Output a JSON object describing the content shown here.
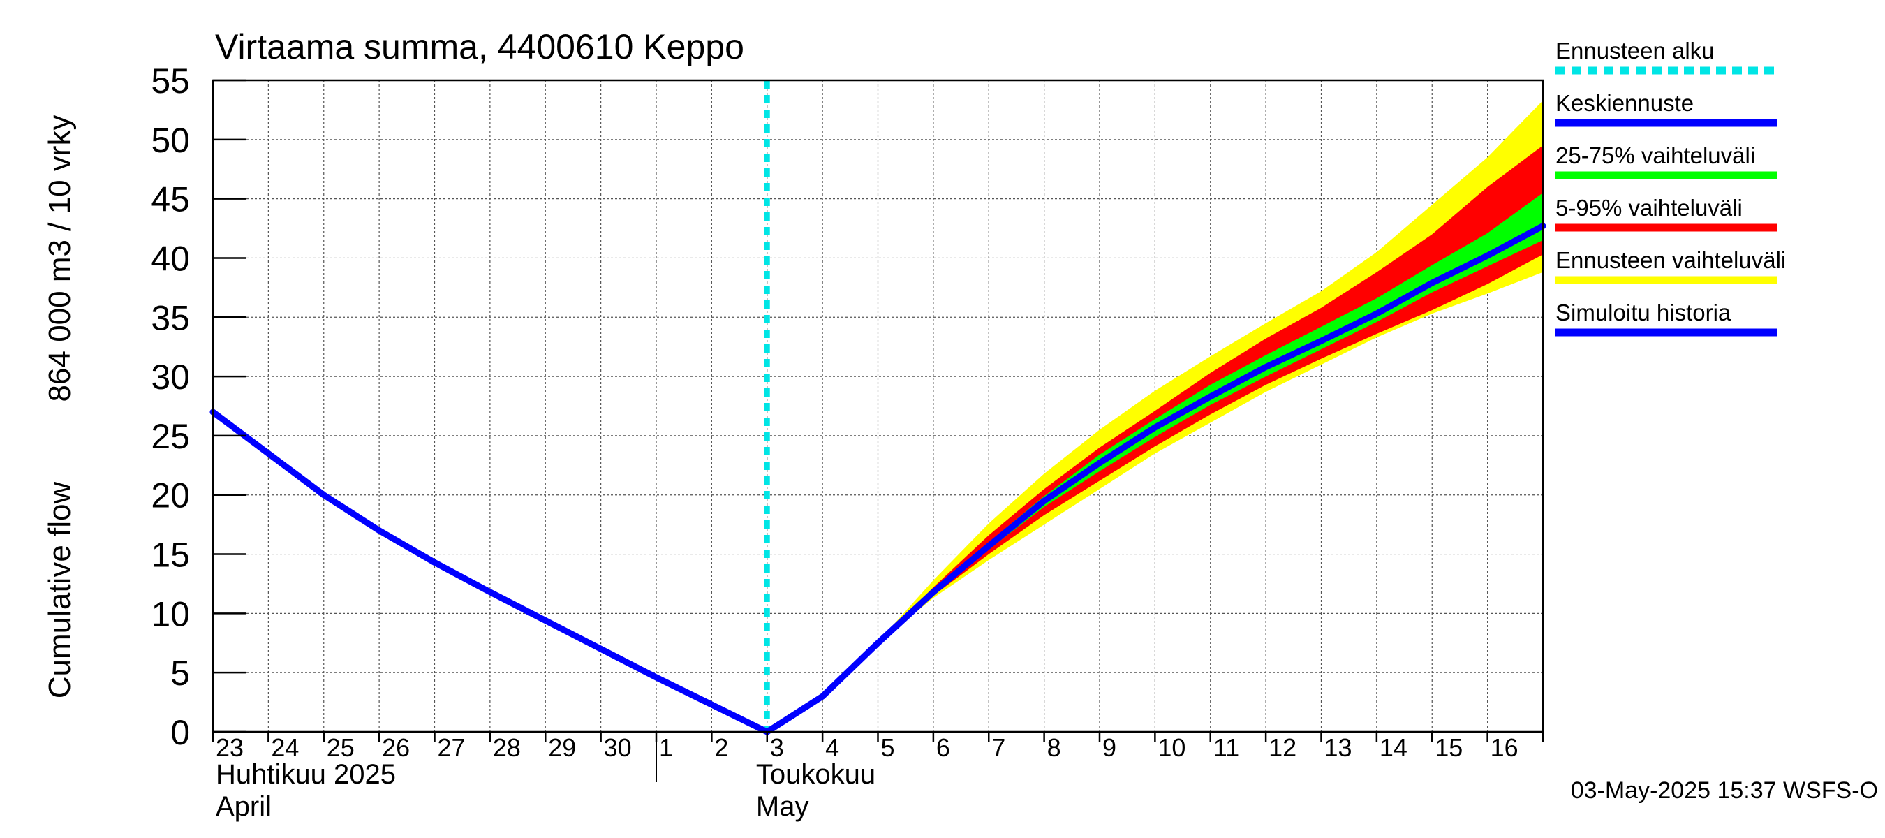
{
  "chart_data": {
    "type": "area",
    "title": "Virtaama summa, 4400610 Keppo",
    "ylabel_line1": "Cumulative flow",
    "ylabel_line2": "864 000 m3 / 10 vrky",
    "ylim": [
      0,
      55
    ],
    "yticks": [
      0,
      5,
      10,
      15,
      20,
      25,
      30,
      35,
      40,
      45,
      50,
      55
    ],
    "x_start_day": "2025-04-23",
    "x_end": "2025-05-17",
    "x_tick_labels": [
      "23",
      "24",
      "25",
      "26",
      "27",
      "28",
      "29",
      "30",
      "1",
      "2",
      "3",
      "4",
      "5",
      "6",
      "7",
      "8",
      "9",
      "10",
      "11",
      "12",
      "13",
      "14",
      "15",
      "16"
    ],
    "month_labels": [
      {
        "fi": "Huhtikuu  2025",
        "en": "April"
      },
      {
        "fi": "Toukokuu",
        "en": "May"
      }
    ],
    "grid": true,
    "forecast_start": "2025-05-03",
    "footer": "03-May-2025 15:37 WSFS-O",
    "legend_position": "right",
    "legend": [
      {
        "label": "Ennusteen alku",
        "color": "#00e5e5",
        "style": "dashed"
      },
      {
        "label": "Keskiennuste",
        "color": "#0000ff",
        "style": "solid"
      },
      {
        "label": "25-75% vaihteluväli",
        "color": "#00ff00",
        "style": "solid"
      },
      {
        "label": "5-95% vaihteluväli",
        "color": "#ff0000",
        "style": "solid"
      },
      {
        "label": "Ennusteen vaihteluväli",
        "color": "#ffff00",
        "style": "solid"
      },
      {
        "label": "Simuloitu historia",
        "color": "#0000ff",
        "style": "solid"
      }
    ],
    "series": [
      {
        "name": "Simuloitu historia",
        "color": "#0000ff",
        "x": [
          "2025-04-23",
          "2025-04-24",
          "2025-04-25",
          "2025-04-26",
          "2025-04-27",
          "2025-04-28",
          "2025-04-29",
          "2025-04-30",
          "2025-05-01",
          "2025-05-02",
          "2025-05-03"
        ],
        "y": [
          27.0,
          23.5,
          20.0,
          17.0,
          14.3,
          11.8,
          9.4,
          7.0,
          4.6,
          2.3,
          0.0
        ]
      },
      {
        "name": "Keskiennuste",
        "color": "#0000ff",
        "x": [
          "2025-05-03",
          "2025-05-04",
          "2025-05-05",
          "2025-05-06",
          "2025-05-07",
          "2025-05-08",
          "2025-05-09",
          "2025-05-10",
          "2025-05-11",
          "2025-05-12",
          "2025-05-13",
          "2025-05-14",
          "2025-05-15",
          "2025-05-16",
          "2025-05-17"
        ],
        "y": [
          0.0,
          3.0,
          7.5,
          11.8,
          15.7,
          19.5,
          22.7,
          25.7,
          28.3,
          30.8,
          33.0,
          35.3,
          37.9,
          40.2,
          42.7
        ]
      }
    ],
    "bands": [
      {
        "name": "Ennusteen vaihteluväli",
        "color": "#ffff00",
        "x": [
          "2025-05-03",
          "2025-05-04",
          "2025-05-05",
          "2025-05-06",
          "2025-05-07",
          "2025-05-08",
          "2025-05-09",
          "2025-05-10",
          "2025-05-11",
          "2025-05-12",
          "2025-05-13",
          "2025-05-14",
          "2025-05-15",
          "2025-05-16",
          "2025-05-17"
        ],
        "lower": [
          0.0,
          3.0,
          7.5,
          11.3,
          14.5,
          17.5,
          20.5,
          23.5,
          26.1,
          28.7,
          31.0,
          33.3,
          35.3,
          37.0,
          38.8
        ],
        "upper": [
          0.0,
          3.0,
          7.6,
          12.8,
          17.6,
          21.8,
          25.5,
          28.8,
          31.7,
          34.5,
          37.2,
          40.5,
          44.5,
          48.5,
          53.3
        ]
      },
      {
        "name": "5-95% vaihteluväli",
        "color": "#ff0000",
        "x": [
          "2025-05-03",
          "2025-05-04",
          "2025-05-05",
          "2025-05-06",
          "2025-05-07",
          "2025-05-08",
          "2025-05-09",
          "2025-05-10",
          "2025-05-11",
          "2025-05-12",
          "2025-05-13",
          "2025-05-14",
          "2025-05-15",
          "2025-05-16",
          "2025-05-17"
        ],
        "lower": [
          0.0,
          3.0,
          7.5,
          11.5,
          15.0,
          18.3,
          21.2,
          24.1,
          26.8,
          29.3,
          31.5,
          33.6,
          35.6,
          37.8,
          40.3
        ],
        "upper": [
          0.0,
          3.0,
          7.5,
          12.2,
          16.6,
          20.5,
          24.0,
          27.1,
          30.3,
          33.2,
          35.8,
          38.8,
          42.0,
          46.0,
          49.5
        ]
      },
      {
        "name": "25-75% vaihteluväli",
        "color": "#00ff00",
        "x": [
          "2025-05-03",
          "2025-05-04",
          "2025-05-05",
          "2025-05-06",
          "2025-05-07",
          "2025-05-08",
          "2025-05-09",
          "2025-05-10",
          "2025-05-11",
          "2025-05-12",
          "2025-05-13",
          "2025-05-14",
          "2025-05-15",
          "2025-05-16",
          "2025-05-17"
        ],
        "lower": [
          0.0,
          3.0,
          7.5,
          11.7,
          15.4,
          19.0,
          22.0,
          24.9,
          27.6,
          30.0,
          32.3,
          34.6,
          37.1,
          39.3,
          41.5
        ],
        "upper": [
          0.0,
          3.0,
          7.5,
          11.9,
          16.0,
          19.9,
          23.4,
          26.4,
          29.3,
          31.8,
          34.2,
          36.6,
          39.4,
          42.1,
          45.5
        ]
      }
    ]
  }
}
